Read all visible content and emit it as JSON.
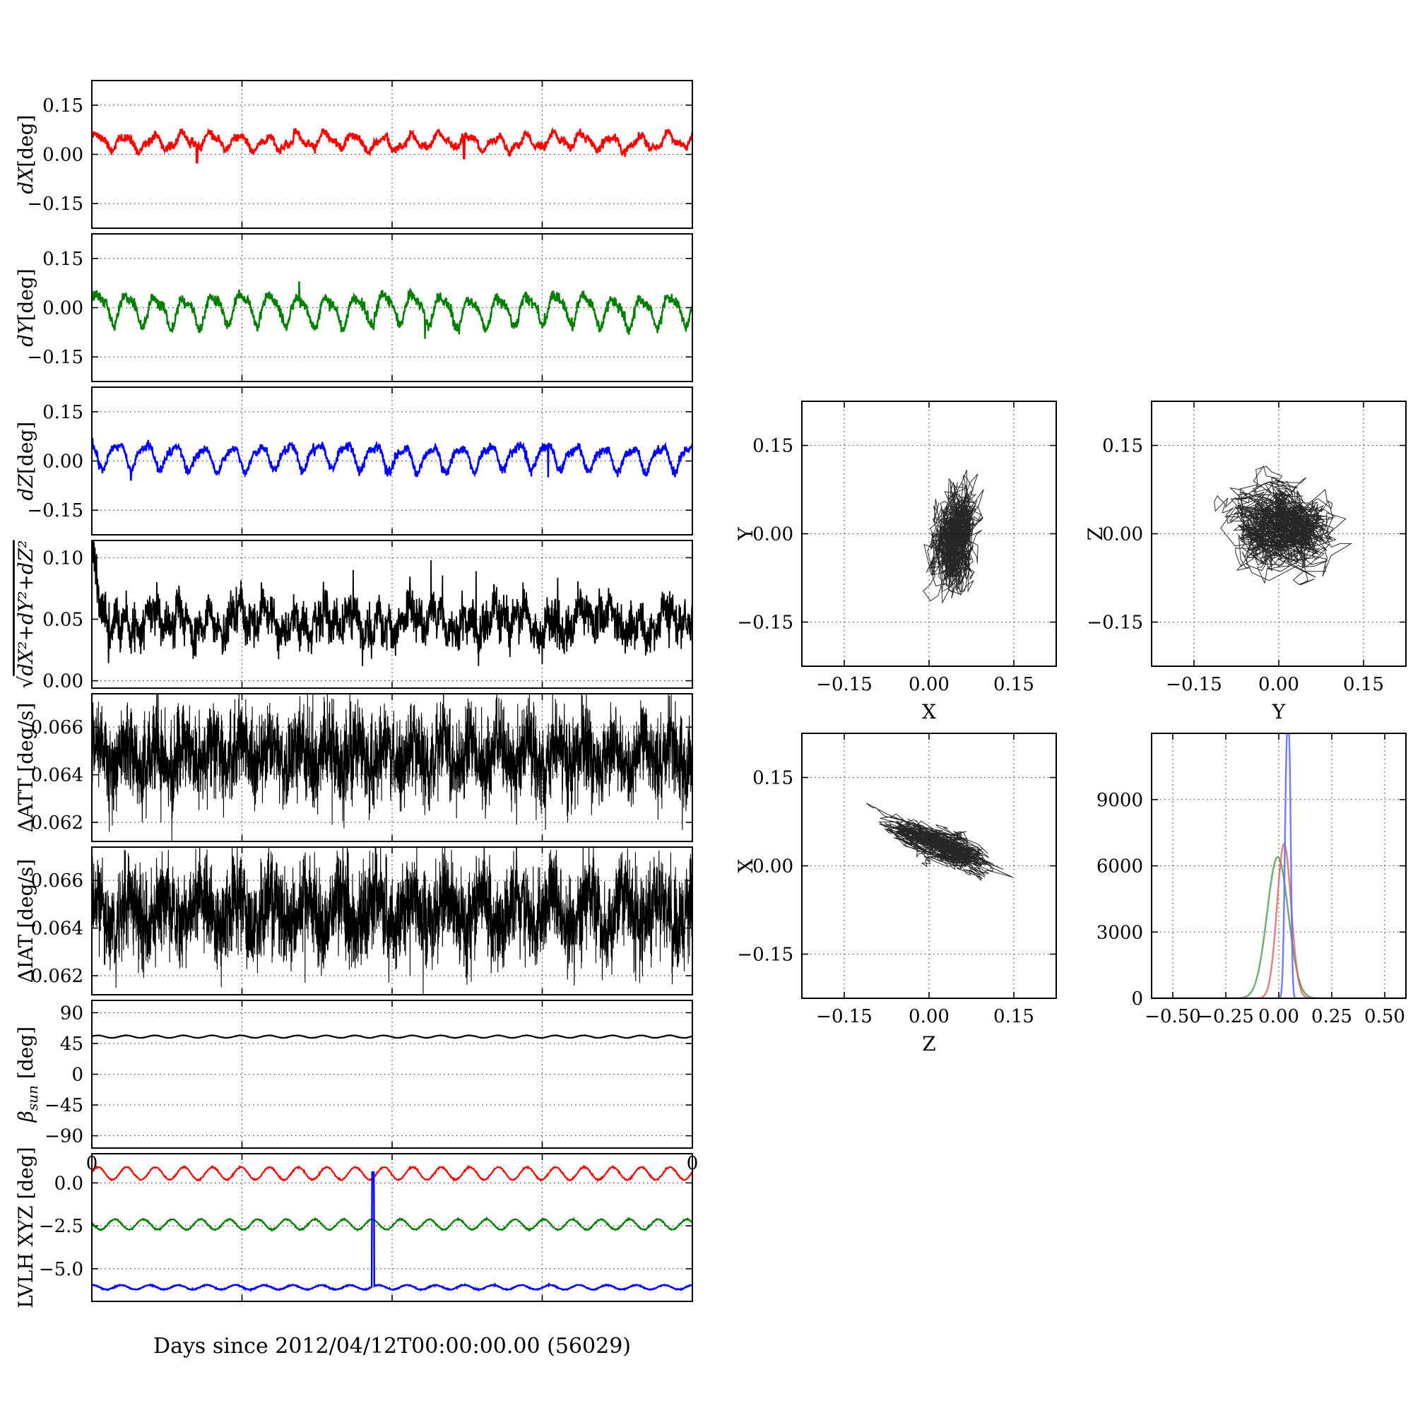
{
  "figure": {
    "background": "#ffffff",
    "xlabel": "Days since 2012/04/12T00:00:00.00 (56029)",
    "axis_color": "#000000"
  },
  "chart_data": [
    {
      "id": "p0",
      "type": "line",
      "ylabel": [
        {
          "t": "dX",
          "i": true
        },
        {
          "t": "[deg]"
        }
      ],
      "ylim": [
        -0.225,
        0.225
      ],
      "yticks": [
        [
          0.15,
          "0.15"
        ],
        [
          0.0,
          "0.00"
        ],
        [
          -0.15,
          "−0.15"
        ]
      ],
      "xgrid": [
        0.25,
        0.5,
        0.75
      ],
      "series": [
        {
          "name": "dX",
          "color": "#ff0000",
          "linewidth": 2.6,
          "seed": 11,
          "n": 1600,
          "mean": 0.038,
          "components": [
            {
              "amp": 0.02,
              "cycles": 21,
              "phase": 0.5
            },
            {
              "amp": 0.008,
              "cycles": 47,
              "phase": 1.2
            },
            {
              "amp": 0.006,
              "cycles": 5,
              "phase": 2.0
            }
          ],
          "gnoise": 0.006,
          "spikes": [
            {
              "x": 0.175,
              "v": -0.025,
              "w": 2
            },
            {
              "x": 0.62,
              "v": -0.012,
              "w": 2
            }
          ]
        }
      ]
    },
    {
      "id": "p1",
      "type": "line",
      "ylabel": [
        {
          "t": "dY",
          "i": true
        },
        {
          "t": "[deg]"
        }
      ],
      "ylim": [
        -0.225,
        0.225
      ],
      "yticks": [
        [
          0.15,
          "0.15"
        ],
        [
          0.0,
          "0.00"
        ],
        [
          -0.15,
          "−0.15"
        ]
      ],
      "xgrid": [
        0.25,
        0.5,
        0.75
      ],
      "series": [
        {
          "name": "dY",
          "color": "#007f00",
          "linewidth": 2.4,
          "seed": 12,
          "n": 1600,
          "mean": -0.005,
          "components": [
            {
              "amp": 0.042,
              "cycles": 21,
              "phase": 0.0
            },
            {
              "amp": 0.014,
              "cycles": 42,
              "phase": 0.9
            },
            {
              "amp": 0.007,
              "cycles": 4,
              "phase": 1.1
            }
          ],
          "gnoise": 0.008,
          "spikes": [
            {
              "x": 0.555,
              "v": -0.095,
              "w": 1
            },
            {
              "x": 0.345,
              "v": 0.08,
              "w": 1
            }
          ]
        }
      ]
    },
    {
      "id": "p2",
      "type": "line",
      "ylabel": [
        {
          "t": "dZ",
          "i": true
        },
        {
          "t": "[deg]"
        }
      ],
      "ylim": [
        -0.225,
        0.225
      ],
      "yticks": [
        [
          0.15,
          "0.15"
        ],
        [
          0.0,
          "0.00"
        ],
        [
          -0.15,
          "−0.15"
        ]
      ],
      "xgrid": [
        0.25,
        0.5,
        0.75
      ],
      "series": [
        {
          "name": "dZ",
          "color": "#0000ff",
          "linewidth": 2.4,
          "seed": 13,
          "n": 1600,
          "mean": 0.012,
          "components": [
            {
              "amp": 0.034,
              "cycles": 21,
              "phase": 2.2
            },
            {
              "amp": 0.011,
              "cycles": 42,
              "phase": 0.3
            },
            {
              "amp": 0.006,
              "cycles": 3,
              "phase": 0.6
            }
          ],
          "gnoise": 0.007,
          "spikes": [
            {
              "x": 0.065,
              "v": -0.06,
              "w": 1
            },
            {
              "x": 0.76,
              "v": -0.05,
              "w": 1
            }
          ]
        }
      ]
    },
    {
      "id": "p3",
      "type": "line",
      "ylabel": [
        {
          "t": "√"
        },
        {
          "t": "dX²+dY²+dZ²",
          "i": true,
          "over": true
        }
      ],
      "ylim": [
        -0.006,
        0.114
      ],
      "yticks": [
        [
          0.1,
          "0.10"
        ],
        [
          0.05,
          "0.05"
        ],
        [
          0.0,
          "0.00"
        ]
      ],
      "xgrid": [
        0.25,
        0.5,
        0.75
      ],
      "series": [
        {
          "name": "magnitude",
          "color": "#000000",
          "linewidth": 1.8,
          "seed": 14,
          "n": 2200,
          "mean": 0.048,
          "components": [
            {
              "amp": 0.008,
              "cycles": 21,
              "phase": 1.0
            },
            {
              "amp": 0.007,
              "cycles": 57,
              "phase": 0.4
            },
            {
              "amp": 0.005,
              "cycles": 7,
              "phase": 2.5
            }
          ],
          "gnoise": 0.0085,
          "decay": {
            "amp": 0.05,
            "rate": 80
          },
          "clampMin": 0.012,
          "spikes": [
            {
              "x": 0.565,
              "v": 0.098,
              "w": 1
            },
            {
              "x": 0.435,
              "v": 0.09,
              "w": 1
            },
            {
              "x": 0.64,
              "v": 0.089,
              "w": 1
            }
          ]
        }
      ]
    },
    {
      "id": "p4",
      "type": "line",
      "ylabel": "ΔATT [deg/s]",
      "ylim": [
        0.0612,
        0.0674
      ],
      "yticks": [
        [
          0.066,
          "0.066"
        ],
        [
          0.064,
          "0.064"
        ],
        [
          0.062,
          "0.062"
        ]
      ],
      "xgrid": [
        0.25,
        0.5,
        0.75
      ],
      "series": [
        {
          "name": "delta-att",
          "color": "#000000",
          "linewidth": 1.1,
          "seed": 15,
          "n": 4200,
          "mean": 0.0648,
          "components": [
            {
              "amp": 0.0006,
              "cycles": 21,
              "phase": 0.0
            },
            {
              "amp": 0.00035,
              "cycles": 140,
              "phase": 0.0
            }
          ],
          "gnoise": 0.00085,
          "spikes": [
            {
              "x": 0.368,
              "v": 0.0677,
              "w": 1
            },
            {
              "x": 0.115,
              "v": 0.062,
              "w": 1
            },
            {
              "x": 0.4,
              "v": 0.0619,
              "w": 1
            },
            {
              "x": 0.74,
              "v": 0.0621,
              "w": 1
            }
          ]
        }
      ]
    },
    {
      "id": "p5",
      "type": "line",
      "ylabel": "ΔIAT [deg/s]",
      "ylim": [
        0.0612,
        0.0674
      ],
      "yticks": [
        [
          0.066,
          "0.066"
        ],
        [
          0.064,
          "0.064"
        ],
        [
          0.062,
          "0.062"
        ]
      ],
      "xgrid": [
        0.25,
        0.5,
        0.75
      ],
      "series": [
        {
          "name": "delta-iat",
          "color": "#000000",
          "linewidth": 1.1,
          "seed": 16,
          "n": 4200,
          "mean": 0.0647,
          "components": [
            {
              "amp": 0.0007,
              "cycles": 17,
              "phase": 1.2
            },
            {
              "amp": 0.0004,
              "cycles": 110,
              "phase": 2.1
            }
          ],
          "gnoise": 0.0009,
          "spikes": [
            {
              "x": 0.355,
              "v": 0.0617,
              "w": 1
            },
            {
              "x": 0.53,
              "v": 0.062,
              "w": 1
            },
            {
              "x": 0.665,
              "v": 0.0621,
              "w": 1
            },
            {
              "x": 0.905,
              "v": 0.0622,
              "w": 1
            }
          ]
        }
      ]
    },
    {
      "id": "p6",
      "type": "line",
      "ylabel": [
        {
          "t": "β",
          "i": true
        },
        {
          "t": "sun",
          "i": true,
          "sub": true
        },
        {
          "t": " [deg]"
        }
      ],
      "ylim": [
        -108,
        108
      ],
      "yticks": [
        [
          90,
          "90"
        ],
        [
          45,
          "45"
        ],
        [
          0,
          "0"
        ],
        [
          -45,
          "−45"
        ],
        [
          -90,
          "−90"
        ]
      ],
      "xgrid": [
        0.25,
        0.5,
        0.75
      ],
      "xtick_labels": [
        {
          "frac": 0,
          "label": "0"
        },
        {
          "frac": 1,
          "label": "0"
        }
      ],
      "series": [
        {
          "name": "beta-sun",
          "color": "#000000",
          "linewidth": 2.2,
          "seed": 17,
          "n": 1200,
          "mean": 55,
          "components": [
            {
              "amp": 1.8,
              "cycles": 21,
              "phase": 0.3
            }
          ],
          "gnoise": 0.15
        }
      ]
    },
    {
      "id": "p7",
      "type": "line",
      "ylabel": "LVLH XYZ [deg]",
      "ylim": [
        -6.9,
        1.7
      ],
      "yticks": [
        [
          0.0,
          "0.0"
        ],
        [
          -2.5,
          "−2.5"
        ],
        [
          -5.0,
          "−5.0"
        ]
      ],
      "xgrid": [
        0.25,
        0.5,
        0.75
      ],
      "series": [
        {
          "name": "lvlh-x",
          "color": "#ff0000",
          "linewidth": 2.2,
          "seed": 18,
          "n": 1400,
          "mean": 0.55,
          "components": [
            {
              "amp": 0.37,
              "cycles": 21,
              "phase": 0.2
            }
          ],
          "gnoise": 0.02
        },
        {
          "name": "lvlh-y",
          "color": "#007f00",
          "linewidth": 2.2,
          "seed": 19,
          "n": 1400,
          "mean": -2.42,
          "components": [
            {
              "amp": 0.3,
              "cycles": 21,
              "phase": 2.8
            }
          ],
          "gnoise": 0.02
        },
        {
          "name": "lvlh-z",
          "color": "#0000ff",
          "linewidth": 2.4,
          "seed": 20,
          "n": 1400,
          "mean": -6.08,
          "components": [
            {
              "amp": 0.13,
              "cycles": 21,
              "phase": 1.4
            }
          ],
          "gnoise": 0.015,
          "spikes": [
            {
              "x": 0.468,
              "v": 0.62,
              "w": 4
            }
          ]
        }
      ]
    },
    {
      "id": "sc0",
      "type": "scatter",
      "xlabel": "X",
      "ylabel": "Y",
      "xlim": [
        -0.225,
        0.225
      ],
      "ylim": [
        -0.225,
        0.225
      ],
      "xticks": [
        [
          -0.15,
          "−0.15"
        ],
        [
          0.0,
          "0.00"
        ],
        [
          0.15,
          "0.15"
        ]
      ],
      "yticks": [
        [
          -0.15,
          "−0.15"
        ],
        [
          0.0,
          "0.00"
        ],
        [
          0.15,
          "0.15"
        ]
      ],
      "cluster": {
        "color": "#000000",
        "n": 1400,
        "cx": 0.045,
        "cy": -0.005,
        "sx": 0.018,
        "sy": 0.042,
        "rot_deg": -8,
        "seed": 21
      }
    },
    {
      "id": "sc1",
      "type": "scatter",
      "xlabel": "Y",
      "ylabel": "Z",
      "xlim": [
        -0.225,
        0.225
      ],
      "ylim": [
        -0.225,
        0.225
      ],
      "xticks": [
        [
          -0.15,
          "−0.15"
        ],
        [
          0.0,
          "0.00"
        ],
        [
          0.15,
          "0.15"
        ]
      ],
      "yticks": [
        [
          -0.15,
          "−0.15"
        ],
        [
          0.0,
          "0.00"
        ],
        [
          0.15,
          "0.15"
        ]
      ],
      "cluster": {
        "color": "#000000",
        "n": 1400,
        "cx": 0.0,
        "cy": 0.012,
        "sx": 0.042,
        "sy": 0.032,
        "rot_deg": 0,
        "seed": 22
      }
    },
    {
      "id": "sc2",
      "type": "scatter",
      "xlabel": "Z",
      "ylabel": "X",
      "xlim": [
        -0.225,
        0.225
      ],
      "ylim": [
        -0.225,
        0.225
      ],
      "xticks": [
        [
          -0.15,
          "−0.15"
        ],
        [
          0.0,
          "0.00"
        ],
        [
          0.15,
          "0.15"
        ]
      ],
      "yticks": [
        [
          -0.15,
          "−0.15"
        ],
        [
          0.0,
          "0.00"
        ],
        [
          0.15,
          "0.15"
        ]
      ],
      "cluster": {
        "color": "#000000",
        "n": 1200,
        "cx": 0.01,
        "cy": 0.038,
        "sx": 0.042,
        "sy": 0.011,
        "rot_deg": -22,
        "seed": 23
      }
    },
    {
      "id": "hist",
      "type": "histogram-lines",
      "xlim": [
        -0.6,
        0.6
      ],
      "ylim": [
        0,
        12000
      ],
      "xticks": [
        [
          -0.5,
          "−0.50"
        ],
        [
          -0.25,
          "−0.25"
        ],
        [
          0.0,
          "0.00"
        ],
        [
          0.25,
          "0.25"
        ],
        [
          0.5,
          "0.50"
        ]
      ],
      "yticks": [
        [
          0,
          "0"
        ],
        [
          3000,
          "3000"
        ],
        [
          6000,
          "6000"
        ],
        [
          9000,
          "9000"
        ]
      ],
      "series": [
        {
          "name": "dY-distribution",
          "color": "#4d9a4d",
          "opacity": 0.8,
          "linewidth": 2.5,
          "gaussians": [
            {
              "mu": -0.005,
              "sigma": 0.05,
              "a": 6400
            }
          ]
        },
        {
          "name": "dX-distribution",
          "color": "#e06060",
          "opacity": 0.8,
          "linewidth": 2.5,
          "gaussians": [
            {
              "mu": 0.025,
              "sigma": 0.033,
              "a": 7000
            }
          ]
        },
        {
          "name": "dZ-distribution",
          "color": "#5a6cf0",
          "opacity": 0.85,
          "linewidth": 2.5,
          "gaussians": [
            {
              "mu": 0.038,
              "sigma": 0.0095,
              "a": 11000
            },
            {
              "mu": 0.052,
              "sigma": 0.007,
              "a": 7000
            }
          ]
        }
      ]
    }
  ]
}
